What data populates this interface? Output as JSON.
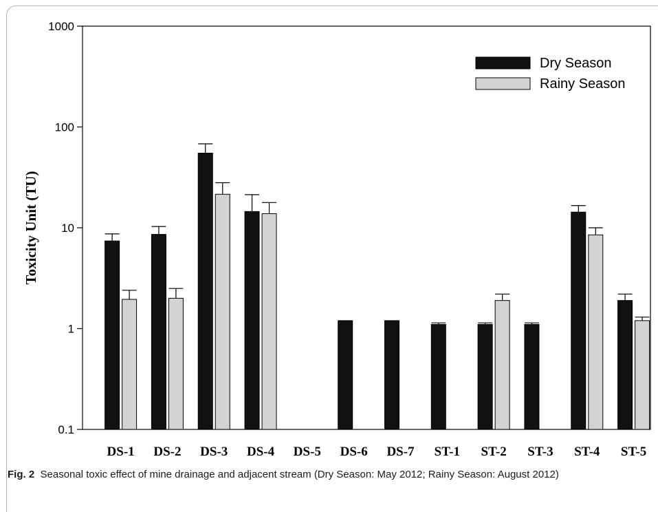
{
  "chart_data": {
    "type": "bar",
    "categories": [
      "DS-1",
      "DS-2",
      "DS-3",
      "DS-4",
      "DS-5",
      "DS-6",
      "DS-7",
      "ST-1",
      "ST-2",
      "ST-3",
      "ST-4",
      "ST-5"
    ],
    "series": [
      {
        "name": "Dry Season",
        "color": "#111111",
        "values": [
          7.4,
          8.6,
          55,
          14.5,
          null,
          1.2,
          1.2,
          1.1,
          1.1,
          1.1,
          14.3,
          1.9
        ],
        "errors": [
          1.3,
          1.7,
          13,
          6.8,
          null,
          0,
          0,
          0.04,
          0.04,
          0.04,
          2.3,
          0.3
        ]
      },
      {
        "name": "Rainy Season",
        "color": "#d3d3d3",
        "values": [
          1.95,
          2.0,
          21.5,
          13.8,
          null,
          null,
          null,
          null,
          1.9,
          null,
          8.5,
          1.2
        ],
        "errors": [
          0.45,
          0.5,
          6.5,
          4.0,
          null,
          null,
          null,
          null,
          0.3,
          null,
          1.5,
          0.1
        ]
      }
    ],
    "ylabel": "Toxicity Unit (TU)",
    "xlabel": "",
    "yscale": "log",
    "ylim": [
      0.1,
      1000
    ],
    "yticks": [
      "0.1",
      "1",
      "10",
      "100",
      "1000"
    ],
    "grid": false,
    "legend": "top-right"
  },
  "caption": {
    "label": "Fig. 2",
    "text": "Seasonal toxic effect of mine drainage and adjacent stream (Dry Season: May 2012; Rainy Season: August 2012)"
  }
}
